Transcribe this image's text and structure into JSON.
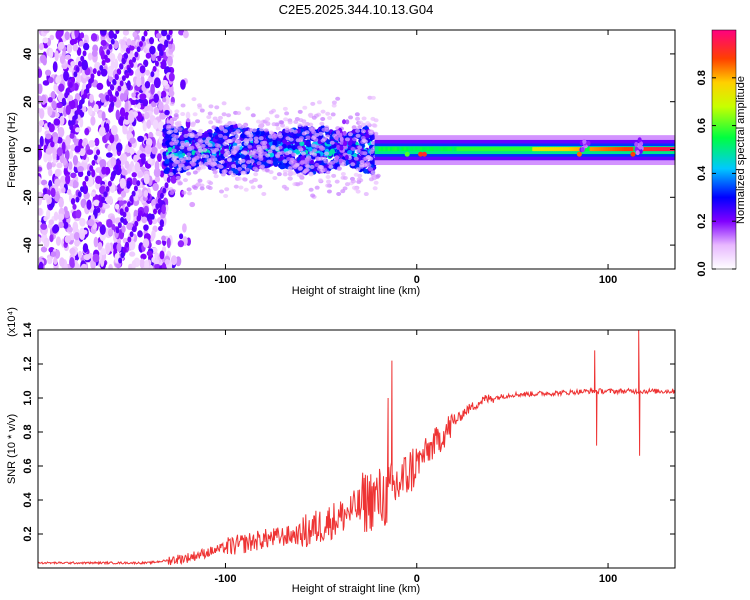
{
  "title": "C2E5.2025.344.10.13.G04",
  "chart_data": [
    {
      "type": "heatmap",
      "name": "spectrogram",
      "xlabel": "Height of straight line (km)",
      "ylabel": "Frequency (Hz)",
      "xlim": [
        -198,
        135
      ],
      "ylim": [
        -50,
        50
      ],
      "xticks": [
        -100,
        0,
        100
      ],
      "yticks": [
        -40,
        -20,
        0,
        20,
        40
      ],
      "colorbar": {
        "label": "Normalized spectral amplitude",
        "range": [
          0,
          1
        ],
        "ticks": [
          0.0,
          0.2,
          0.4,
          0.6,
          0.8
        ],
        "tick_labels": [
          "0.0",
          "0.2",
          "0.4",
          "0.6",
          "0.8"
        ]
      },
      "notes": "Scattered low-amplitude noise below -120 km; strong band centered near 0 Hz from -130 km upward, narrowing to a tight high-amplitude line above 0 km"
    },
    {
      "type": "line",
      "name": "snr",
      "xlabel": "Height of straight line (km)",
      "ylabel": "SNR (10 * v/v)",
      "multiplier_label": "(x10⁴)",
      "xlim": [
        -198,
        135
      ],
      "ylim": [
        0,
        1.4
      ],
      "xticks": [
        -100,
        0,
        100
      ],
      "yticks": [
        0.2,
        0.4,
        0.6,
        0.8,
        1.0,
        1.2,
        1.4
      ],
      "ytick_labels": [
        "0.2",
        "0.4",
        "0.6",
        "0.8",
        "1.0",
        "1.2",
        "1.4"
      ],
      "color": "#ee3333",
      "trend": [
        {
          "x": -198,
          "y": 0.03
        },
        {
          "x": -140,
          "y": 0.03
        },
        {
          "x": -120,
          "y": 0.06
        },
        {
          "x": -100,
          "y": 0.12
        },
        {
          "x": -80,
          "y": 0.17
        },
        {
          "x": -60,
          "y": 0.2
        },
        {
          "x": -40,
          "y": 0.3
        },
        {
          "x": -25,
          "y": 0.4
        },
        {
          "x": -15,
          "y": 0.42
        },
        {
          "x": -5,
          "y": 0.55
        },
        {
          "x": 5,
          "y": 0.68
        },
        {
          "x": 15,
          "y": 0.8
        },
        {
          "x": 25,
          "y": 0.92
        },
        {
          "x": 35,
          "y": 0.99
        },
        {
          "x": 50,
          "y": 1.02
        },
        {
          "x": 75,
          "y": 1.03
        },
        {
          "x": 90,
          "y": 1.04
        },
        {
          "x": 110,
          "y": 1.04
        },
        {
          "x": 135,
          "y": 1.04
        }
      ],
      "spikes": [
        {
          "x": -13,
          "y": 1.22
        },
        {
          "x": -15,
          "y": 1.0
        },
        {
          "x": 93,
          "y": 1.28
        },
        {
          "x": 94,
          "y": 0.72
        },
        {
          "x": 116,
          "y": 1.4
        },
        {
          "x": 116.5,
          "y": 0.66
        }
      ]
    }
  ]
}
